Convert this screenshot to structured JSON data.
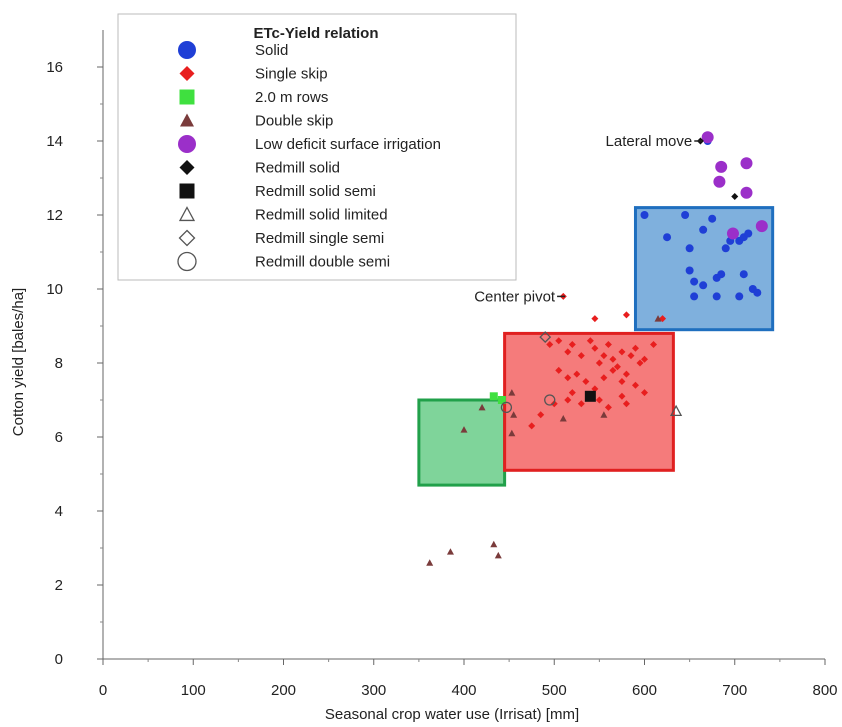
{
  "chart_data": {
    "type": "scatter",
    "xlabel": "Seasonal crop water use (Irrisat) [mm]",
    "ylabel": "Cotton yield [bales/ha]",
    "xlim": [
      0,
      800
    ],
    "ylim": [
      0,
      17
    ],
    "x_ticks": [
      0,
      100,
      200,
      300,
      400,
      500,
      600,
      700,
      800
    ],
    "y_ticks": [
      0,
      2,
      4,
      6,
      8,
      10,
      12,
      14,
      16
    ],
    "grid": false,
    "legend": {
      "title": "ETc-Yield relation",
      "placement": "top-left",
      "entries": [
        {
          "label": "Solid",
          "marker": "circle",
          "color": "#1f3fd6",
          "filled": true
        },
        {
          "label": "Single skip",
          "marker": "diamond",
          "color": "#e81e1e",
          "filled": true
        },
        {
          "label": "2.0 m rows",
          "marker": "square",
          "color": "#3fe03f",
          "filled": true
        },
        {
          "label": "Double skip",
          "marker": "triangle",
          "color": "#7a3b3b",
          "filled": true
        },
        {
          "label": "Low deficit surface irrigation",
          "marker": "circle",
          "color": "#9b2fc9",
          "filled": true
        },
        {
          "label": "Redmill solid",
          "marker": "diamond",
          "color": "#111111",
          "filled": true
        },
        {
          "label": "Redmill solid semi",
          "marker": "square",
          "color": "#111111",
          "filled": true
        },
        {
          "label": "Redmill solid limited",
          "marker": "triangle",
          "color": "#555555",
          "filled": false
        },
        {
          "label": "Redmill single semi",
          "marker": "diamond",
          "color": "#555555",
          "filled": false
        },
        {
          "label": "Redmill double semi",
          "marker": "circle",
          "color": "#555555",
          "filled": false
        }
      ]
    },
    "regions": [
      {
        "x": [
          350,
          445
        ],
        "y": [
          4.7,
          7.0
        ],
        "fill": "#7fd49a",
        "stroke": "#21a04a"
      },
      {
        "x": [
          445,
          632
        ],
        "y": [
          5.1,
          8.8
        ],
        "fill": "#f57b7b",
        "stroke": "#e02020"
      },
      {
        "x": [
          590,
          742
        ],
        "y": [
          8.9,
          12.2
        ],
        "fill": "#7fb0dd",
        "stroke": "#1f6fbf"
      }
    ],
    "annotations": [
      {
        "text": "Lateral move",
        "x": 664,
        "y": 14.0
      },
      {
        "text": "Center pivot",
        "x": 512,
        "y": 9.8
      }
    ],
    "series": [
      {
        "name": "Solid",
        "points": [
          [
            600,
            12.0
          ],
          [
            625,
            11.4
          ],
          [
            645,
            12.0
          ],
          [
            650,
            11.1
          ],
          [
            665,
            11.6
          ],
          [
            675,
            11.9
          ],
          [
            690,
            11.1
          ],
          [
            695,
            11.3
          ],
          [
            700,
            11.5
          ],
          [
            705,
            11.3
          ],
          [
            710,
            11.4
          ],
          [
            715,
            11.5
          ],
          [
            650,
            10.5
          ],
          [
            655,
            10.2
          ],
          [
            665,
            10.1
          ],
          [
            680,
            10.3
          ],
          [
            685,
            10.4
          ],
          [
            710,
            10.4
          ],
          [
            720,
            10.0
          ],
          [
            655,
            9.8
          ],
          [
            680,
            9.8
          ],
          [
            705,
            9.8
          ],
          [
            725,
            9.9
          ],
          [
            670,
            14.0
          ]
        ]
      },
      {
        "name": "Single skip",
        "points": [
          [
            510,
            9.8
          ],
          [
            545,
            9.2
          ],
          [
            580,
            9.3
          ],
          [
            620,
            9.2
          ],
          [
            495,
            8.5
          ],
          [
            505,
            8.6
          ],
          [
            515,
            8.3
          ],
          [
            520,
            8.5
          ],
          [
            530,
            8.2
          ],
          [
            540,
            8.6
          ],
          [
            545,
            8.4
          ],
          [
            550,
            8.0
          ],
          [
            555,
            8.2
          ],
          [
            560,
            8.5
          ],
          [
            565,
            8.1
          ],
          [
            570,
            7.9
          ],
          [
            575,
            8.3
          ],
          [
            585,
            8.2
          ],
          [
            590,
            8.4
          ],
          [
            595,
            8.0
          ],
          [
            600,
            8.1
          ],
          [
            610,
            8.5
          ],
          [
            505,
            7.8
          ],
          [
            515,
            7.6
          ],
          [
            525,
            7.7
          ],
          [
            535,
            7.5
          ],
          [
            545,
            7.3
          ],
          [
            555,
            7.6
          ],
          [
            565,
            7.8
          ],
          [
            575,
            7.5
          ],
          [
            580,
            7.7
          ],
          [
            590,
            7.4
          ],
          [
            600,
            7.2
          ],
          [
            520,
            7.2
          ],
          [
            530,
            6.9
          ],
          [
            550,
            7.0
          ],
          [
            560,
            6.8
          ],
          [
            575,
            7.1
          ],
          [
            580,
            6.9
          ],
          [
            485,
            6.6
          ],
          [
            500,
            6.9
          ],
          [
            515,
            7.0
          ],
          [
            475,
            6.3
          ]
        ]
      },
      {
        "name": "2.0 m rows",
        "points": [
          [
            433,
            7.1
          ],
          [
            442,
            7.0
          ]
        ]
      },
      {
        "name": "Double skip",
        "points": [
          [
            362,
            2.6
          ],
          [
            385,
            2.9
          ],
          [
            433,
            3.1
          ],
          [
            438,
            2.8
          ],
          [
            400,
            6.2
          ],
          [
            420,
            6.8
          ],
          [
            455,
            6.6
          ],
          [
            510,
            6.5
          ],
          [
            555,
            6.6
          ],
          [
            615,
            9.2
          ],
          [
            453,
            7.2
          ],
          [
            453,
            6.1
          ]
        ]
      },
      {
        "name": "Low deficit surface irrigation",
        "points": [
          [
            670,
            14.1
          ],
          [
            685,
            13.3
          ],
          [
            713,
            13.4
          ],
          [
            683,
            12.9
          ],
          [
            713,
            12.6
          ],
          [
            698,
            11.5
          ],
          [
            730,
            11.7
          ]
        ]
      },
      {
        "name": "Redmill solid",
        "points": [
          [
            700,
            12.5
          ],
          [
            662,
            14.0
          ]
        ]
      },
      {
        "name": "Redmill solid semi",
        "points": [
          [
            540,
            7.1
          ]
        ]
      },
      {
        "name": "Redmill solid limited",
        "points": [
          [
            635,
            6.7
          ]
        ]
      },
      {
        "name": "Redmill single semi",
        "points": [
          [
            490,
            8.7
          ]
        ]
      },
      {
        "name": "Redmill double semi",
        "points": [
          [
            447,
            6.8
          ],
          [
            495,
            7.0
          ]
        ]
      }
    ]
  }
}
